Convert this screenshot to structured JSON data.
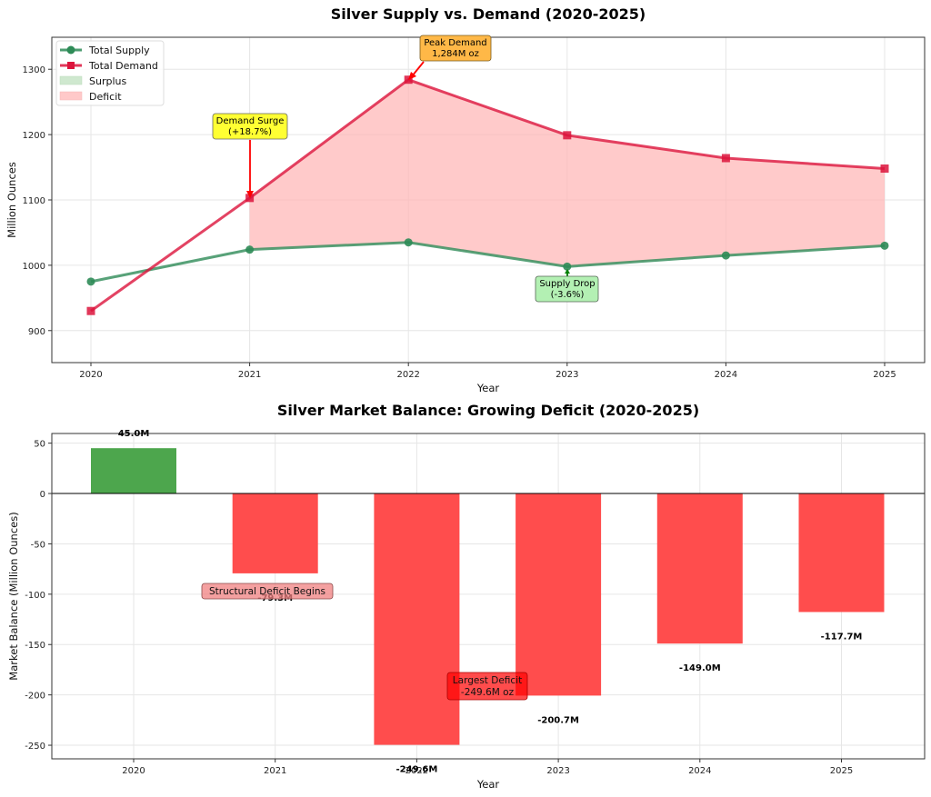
{
  "chart_data": [
    {
      "type": "line",
      "title": "Silver Supply vs. Demand (2020-2025)",
      "xlabel": "Year",
      "ylabel": "Million Ounces",
      "x": [
        2020,
        2021,
        2022,
        2023,
        2024,
        2025
      ],
      "x_tick_labels": [
        "2020",
        "2021",
        "2022",
        "2023",
        "2024",
        "2025"
      ],
      "y_ticks": [
        900,
        1000,
        1100,
        1200,
        1300
      ],
      "y_tick_labels": [
        "900",
        "1000",
        "1100",
        "1200",
        "1300"
      ],
      "ylim": [
        851,
        1349
      ],
      "grid": true,
      "legend_position": "upper left",
      "legend": [
        "Total Supply",
        "Total Demand",
        "Surplus",
        "Deficit"
      ],
      "series": [
        {
          "name": "Total Supply",
          "color": "#2e8b57",
          "marker": "circle",
          "values": [
            975,
            1024,
            1035,
            998,
            1015,
            1030
          ]
        },
        {
          "name": "Total Demand",
          "color": "#dc143c",
          "marker": "square",
          "values": [
            930,
            1103,
            1284,
            1199,
            1164,
            1148
          ]
        }
      ],
      "fills": [
        {
          "name": "Surplus",
          "color": "#a8d8a8"
        },
        {
          "name": "Deficit",
          "color": "#ffb3b3"
        }
      ],
      "annotations": [
        {
          "text_lines": [
            "Demand Surge",
            "(+18.7%)"
          ],
          "x": 2021,
          "y": 1103,
          "box_color": "#ffff00"
        },
        {
          "text_lines": [
            "Peak Demand",
            "1,284M oz"
          ],
          "x": 2022,
          "y": 1284,
          "box_color": "#ffa500"
        },
        {
          "text_lines": [
            "Supply Drop",
            "(-3.6%)"
          ],
          "x": 2023,
          "y": 998,
          "box_color": "#90ee90"
        }
      ]
    },
    {
      "type": "bar",
      "title": "Silver Market Balance: Growing Deficit (2020-2025)",
      "xlabel": "Year",
      "ylabel": "Market Balance (Million Ounces)",
      "categories": [
        "2020",
        "2021",
        "2022",
        "2023",
        "2024",
        "2025"
      ],
      "values": [
        45.0,
        -79.3,
        -249.6,
        -200.7,
        -149.0,
        -117.7
      ],
      "value_labels": [
        "45.0M",
        "-79.3M",
        "-249.6M",
        "-200.7M",
        "-149.0M",
        "-117.7M"
      ],
      "y_ticks": [
        -250,
        -200,
        -150,
        -100,
        -50,
        0,
        50
      ],
      "y_tick_labels": [
        "-250",
        "-200",
        "-150",
        "-100",
        "-50",
        "0",
        "50"
      ],
      "ylim": [
        -263.5,
        59.6
      ],
      "grid": true,
      "colors": {
        "positive": "#4da64d",
        "negative": "#ff4d4d"
      },
      "annotations": [
        {
          "text": "Structural Deficit Begins",
          "x": 2021,
          "y": -97,
          "box_color": "#f08080"
        },
        {
          "text_lines": [
            "Largest Deficit",
            "-249.6M oz"
          ],
          "x": 2022.5,
          "y": -192,
          "box_color": "#ff0000"
        }
      ]
    }
  ]
}
